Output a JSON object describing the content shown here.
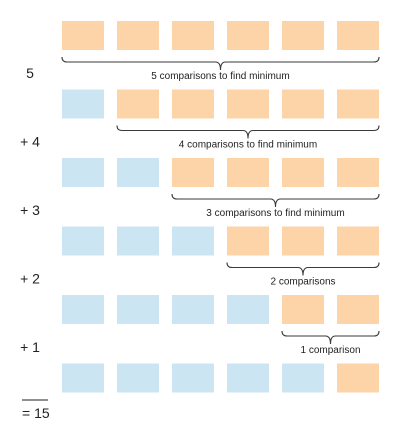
{
  "colors": {
    "sorted_cell": "#cbe5f3",
    "unsorted_cell": "#fdd4a8"
  },
  "rows": [
    {
      "sorted_count": 0,
      "cells": 6,
      "brace_label": "5 comparisons to find minimum",
      "sum_term": "5"
    },
    {
      "sorted_count": 1,
      "cells": 6,
      "brace_label": "4 comparisons to find minimum",
      "sum_term": "+ 4"
    },
    {
      "sorted_count": 2,
      "cells": 6,
      "brace_label": "3 comparisons to find minimum",
      "sum_term": "+ 3"
    },
    {
      "sorted_count": 3,
      "cells": 6,
      "brace_label": "2 comparisons",
      "sum_term": "+ 2"
    },
    {
      "sorted_count": 4,
      "cells": 6,
      "brace_label": "1 comparison",
      "sum_term": "+ 1"
    },
    {
      "sorted_count": 5,
      "cells": 6,
      "brace_label": "",
      "sum_term": ""
    }
  ],
  "total": "= 15"
}
